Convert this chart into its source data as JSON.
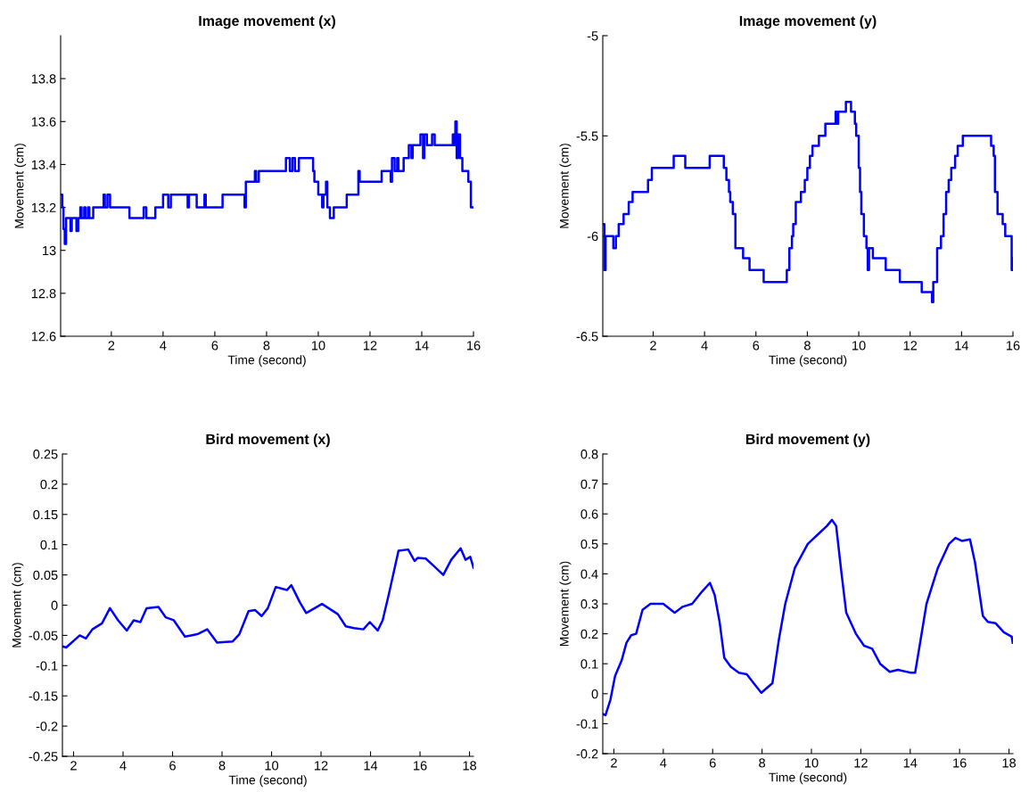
{
  "chart_data": [
    {
      "type": "step",
      "title": "Image movement (x)",
      "xlabel": "Time (second)",
      "ylabel": "Movement (cm)",
      "xlim": [
        0.04,
        16
      ],
      "ylim": [
        12.6,
        14.0
      ],
      "xticks": [
        2,
        4,
        6,
        8,
        10,
        12,
        14,
        16
      ],
      "yticks": [
        12.6,
        12.8,
        13,
        13.2,
        13.4,
        13.6,
        13.8
      ],
      "series": [
        {
          "color": "#0000ff",
          "x": [
            0.04,
            0.1,
            0.15,
            0.2,
            0.25,
            0.42,
            0.47,
            0.65,
            0.72,
            0.8,
            0.85,
            0.95,
            1.0,
            1.1,
            1.15,
            1.3,
            1.7,
            1.75,
            1.85,
            1.95,
            2.7,
            3.25,
            3.35,
            3.7,
            4.0,
            4.2,
            4.3,
            4.95,
            5.0,
            5.3,
            5.6,
            5.65,
            6.3,
            7.15,
            7.2,
            7.55,
            7.6,
            7.7,
            8.75,
            8.9,
            9.0,
            9.1,
            9.25,
            9.8,
            9.85,
            10.0,
            10.15,
            10.2,
            10.3,
            10.35,
            10.45,
            10.6,
            11.1,
            11.55,
            11.6,
            12.45,
            12.8,
            12.85,
            12.95,
            13.05,
            13.1,
            13.3,
            13.5,
            13.6,
            13.65,
            13.95,
            14.05,
            14.1,
            14.2,
            14.4,
            14.5,
            15.2,
            15.25,
            15.3,
            15.35,
            15.4,
            15.48,
            15.57,
            15.8,
            15.9,
            16.0
          ],
          "values": [
            13.26,
            13.2,
            13.1,
            13.03,
            13.15,
            13.09,
            13.15,
            13.09,
            13.15,
            13.2,
            13.15,
            13.2,
            13.15,
            13.2,
            13.15,
            13.2,
            13.26,
            13.2,
            13.26,
            13.2,
            13.15,
            13.2,
            13.15,
            13.2,
            13.26,
            13.2,
            13.26,
            13.2,
            13.26,
            13.2,
            13.26,
            13.2,
            13.26,
            13.2,
            13.32,
            13.37,
            13.32,
            13.37,
            13.43,
            13.37,
            13.43,
            13.37,
            13.43,
            13.37,
            13.32,
            13.26,
            13.2,
            13.26,
            13.32,
            13.2,
            13.15,
            13.2,
            13.26,
            13.37,
            13.32,
            13.37,
            13.32,
            13.43,
            13.37,
            13.43,
            13.37,
            13.43,
            13.49,
            13.43,
            13.49,
            13.54,
            13.43,
            13.54,
            13.49,
            13.54,
            13.49,
            13.54,
            13.49,
            13.6,
            13.43,
            13.54,
            13.43,
            13.37,
            13.32,
            13.2,
            13.2
          ]
        }
      ]
    },
    {
      "type": "step",
      "title": "Image movement (y)",
      "xlabel": "Time (second)",
      "ylabel": "Movement (cm)",
      "xlim": [
        0.04,
        16
      ],
      "ylim": [
        -6.5,
        -5
      ],
      "xticks": [
        2,
        4,
        6,
        8,
        10,
        12,
        14,
        16
      ],
      "yticks": [
        -6.5,
        -6,
        -5.5,
        -5
      ],
      "series": [
        {
          "color": "#0000ff",
          "x": [
            0.04,
            0.1,
            0.15,
            0.45,
            0.55,
            0.66,
            0.85,
            1.05,
            1.2,
            1.8,
            1.95,
            2.8,
            3.25,
            4.2,
            4.75,
            4.85,
            4.95,
            5.0,
            5.1,
            5.2,
            5.5,
            5.75,
            6.3,
            7.2,
            7.3,
            7.4,
            7.45,
            7.55,
            7.75,
            7.9,
            8.0,
            8.1,
            8.2,
            8.45,
            8.7,
            9.1,
            9.15,
            9.2,
            9.5,
            9.7,
            9.85,
            9.9,
            10.0,
            10.05,
            10.1,
            10.2,
            10.3,
            10.35,
            10.4,
            10.55,
            11.05,
            11.6,
            12.45,
            12.85,
            12.9,
            13.05,
            13.2,
            13.3,
            13.4,
            13.5,
            13.6,
            13.75,
            13.85,
            14.05,
            15.15,
            15.25,
            15.3,
            15.4,
            15.6,
            15.7,
            15.95,
            16.0
          ],
          "values": [
            -5.94,
            -6.17,
            -6.0,
            -6.06,
            -6.0,
            -5.94,
            -5.89,
            -5.83,
            -5.78,
            -5.72,
            -5.66,
            -5.6,
            -5.66,
            -5.6,
            -5.66,
            -5.72,
            -5.78,
            -5.83,
            -5.89,
            -6.06,
            -6.11,
            -6.17,
            -6.23,
            -6.17,
            -6.06,
            -6.0,
            -5.94,
            -5.83,
            -5.78,
            -5.72,
            -5.66,
            -5.6,
            -5.55,
            -5.5,
            -5.44,
            -5.38,
            -5.44,
            -5.38,
            -5.33,
            -5.38,
            -5.44,
            -5.5,
            -5.66,
            -5.78,
            -5.89,
            -6.0,
            -6.06,
            -6.17,
            -6.06,
            -6.11,
            -6.17,
            -6.23,
            -6.28,
            -6.33,
            -6.23,
            -6.06,
            -6.0,
            -5.89,
            -5.78,
            -5.72,
            -5.66,
            -5.6,
            -5.55,
            -5.5,
            -5.55,
            -5.6,
            -5.78,
            -5.89,
            -5.94,
            -6.0,
            -6.17,
            -6.11
          ]
        }
      ]
    },
    {
      "type": "line",
      "title": "Bird movement (x)",
      "xlabel": "Time (second)",
      "ylabel": "Movement (cm)",
      "xlim": [
        1.55,
        18.16
      ],
      "ylim": [
        -0.25,
        0.25
      ],
      "xticks": [
        2,
        4,
        6,
        8,
        10,
        12,
        14,
        16,
        18
      ],
      "yticks": [
        -0.25,
        -0.2,
        -0.15,
        -0.1,
        -0.05,
        0,
        0.05,
        0.1,
        0.15,
        0.2,
        0.25
      ],
      "series": [
        {
          "color": "#0000ff",
          "x": [
            1.55,
            1.7,
            2.25,
            2.5,
            2.76,
            3.15,
            3.47,
            3.8,
            4.15,
            4.43,
            4.7,
            4.95,
            5.43,
            5.72,
            6.05,
            6.5,
            6.75,
            7.0,
            7.4,
            7.8,
            8.43,
            8.7,
            9.07,
            9.33,
            9.6,
            9.85,
            10.17,
            10.62,
            10.8,
            11.14,
            11.4,
            12.04,
            12.68,
            13.0,
            13.33,
            13.71,
            13.97,
            14.29,
            14.49,
            14.75,
            15.13,
            15.52,
            15.78,
            15.9,
            16.23,
            16.55,
            16.94,
            17.26,
            17.64,
            17.84,
            18.03,
            18.16
          ],
          "values": [
            -0.068,
            -0.07,
            -0.05,
            -0.055,
            -0.04,
            -0.03,
            -0.005,
            -0.025,
            -0.042,
            -0.025,
            -0.028,
            -0.005,
            -0.003,
            -0.02,
            -0.025,
            -0.052,
            -0.05,
            -0.048,
            -0.04,
            -0.062,
            -0.06,
            -0.048,
            -0.01,
            -0.008,
            -0.018,
            -0.005,
            0.03,
            0.025,
            0.033,
            0.005,
            -0.013,
            0.002,
            -0.015,
            -0.035,
            -0.038,
            -0.04,
            -0.028,
            -0.042,
            -0.025,
            0.02,
            0.09,
            0.092,
            0.073,
            0.078,
            0.077,
            0.065,
            0.05,
            0.075,
            0.094,
            0.075,
            0.08,
            0.062
          ]
        }
      ]
    },
    {
      "type": "line",
      "title": "Bird movement (y)",
      "xlabel": "Time (second)",
      "ylabel": "Movement (cm)",
      "xlim": [
        1.55,
        18.16
      ],
      "ylim": [
        -0.2,
        0.8
      ],
      "xticks": [
        2,
        4,
        6,
        8,
        10,
        12,
        14,
        16,
        18
      ],
      "yticks": [
        -0.2,
        -0.1,
        0,
        0.1,
        0.2,
        0.3,
        0.4,
        0.5,
        0.6,
        0.7,
        0.8
      ],
      "series": [
        {
          "color": "#0000ff",
          "x": [
            1.56,
            1.66,
            1.86,
            2.05,
            2.31,
            2.51,
            2.7,
            2.9,
            3.16,
            3.48,
            4.0,
            4.46,
            4.78,
            5.17,
            5.56,
            5.89,
            6.08,
            6.28,
            6.47,
            6.73,
            7.06,
            7.38,
            7.71,
            7.97,
            8.42,
            8.68,
            8.94,
            9.33,
            9.85,
            10.24,
            10.63,
            10.83,
            11.0,
            11.22,
            11.41,
            11.8,
            12.13,
            12.46,
            12.78,
            13.17,
            13.5,
            14.02,
            14.2,
            14.4,
            14.66,
            15.12,
            15.57,
            15.83,
            16.09,
            16.42,
            16.62,
            16.94,
            17.14,
            17.46,
            17.79,
            18.11,
            18.15
          ],
          "values": [
            -0.068,
            -0.072,
            -0.02,
            0.06,
            0.11,
            0.17,
            0.195,
            0.2,
            0.28,
            0.3,
            0.3,
            0.27,
            0.29,
            0.3,
            0.34,
            0.37,
            0.33,
            0.24,
            0.12,
            0.09,
            0.07,
            0.065,
            0.03,
            0.003,
            0.035,
            0.18,
            0.3,
            0.42,
            0.5,
            0.53,
            0.56,
            0.58,
            0.56,
            0.4,
            0.27,
            0.2,
            0.16,
            0.15,
            0.1,
            0.073,
            0.08,
            0.07,
            0.07,
            0.17,
            0.3,
            0.42,
            0.5,
            0.52,
            0.51,
            0.515,
            0.44,
            0.26,
            0.24,
            0.235,
            0.205,
            0.19,
            0.17
          ]
        }
      ]
    }
  ]
}
